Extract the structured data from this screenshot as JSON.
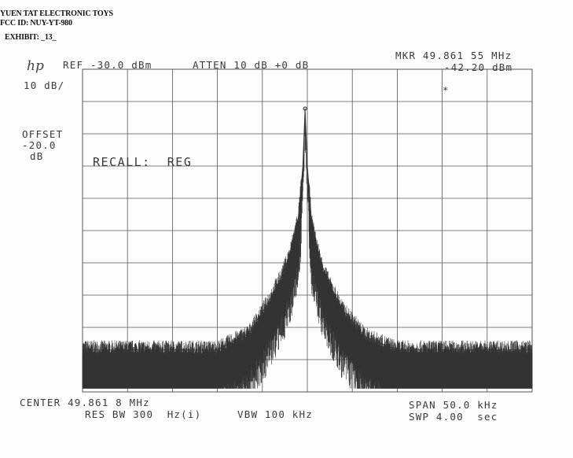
{
  "document": {
    "company": "YUEN TAT ELECTRONIC TOYS",
    "fcc_id": "FCC ID: NUY-YT-980",
    "exhibit": "EXHIBIT: _13_"
  },
  "analyzer": {
    "logo": "hp",
    "ref": "REF -30.0 dBm",
    "atten": "ATTEN 10 dB +0 dB",
    "marker_freq": "MKR 49.861 55 MHz",
    "marker_level": "-42.20 dBm",
    "scale": "10 dB/",
    "offset_label": "OFFSET",
    "offset_value": "-20.0",
    "offset_unit": "dB",
    "recall": "RECALL:  REG",
    "marker_symbol": "*",
    "center": "CENTER 49.861 8 MHz",
    "res_bw": "RES BW 300  Hz(i)",
    "vbw": "VBW 100 kHz",
    "span": "SPAN 50.0 kHz",
    "sweep": "SWP 4.00  sec"
  },
  "chart_data": {
    "type": "line",
    "title": "",
    "xlabel": "",
    "ylabel": "",
    "x_unit": "MHz",
    "y_unit": "dBm",
    "xlim": [
      49.8368,
      49.8868
    ],
    "ylim": [
      -130,
      -30
    ],
    "grid": true,
    "grid_divisions": {
      "x": 10,
      "y": 10
    },
    "marker": {
      "x": 49.86155,
      "y": -42.2
    },
    "series": [
      {
        "x": [
          49.8368,
          49.8518,
          49.8553,
          49.8573,
          49.8588,
          49.8598,
          49.8608,
          49.8613,
          49.86155,
          49.8618,
          49.8623,
          49.8633,
          49.8643,
          49.8658,
          49.8683,
          49.8718,
          49.8868
        ],
        "y": [
          -117,
          -117,
          -112,
          -103,
          -95,
          -88,
          -76,
          -60,
          -42.2,
          -60,
          -78,
          -90,
          -97,
          -105,
          -113,
          -117,
          -117
        ]
      }
    ],
    "colors": {
      "trace": "#333333",
      "grid": "#555555"
    }
  }
}
